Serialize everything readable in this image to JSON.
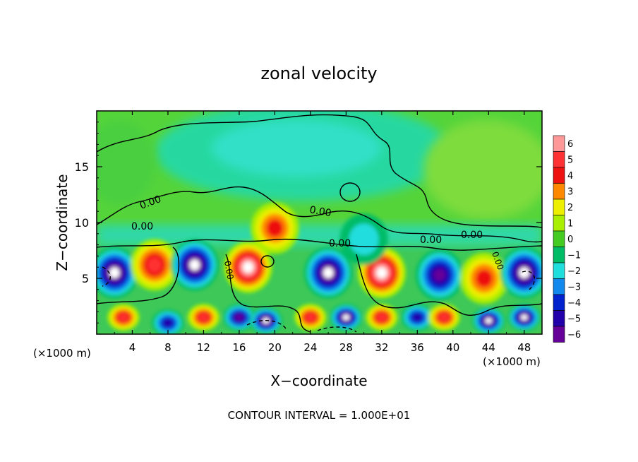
{
  "chart_data": {
    "type": "heatmap",
    "title": "zonal velocity",
    "xlabel": "X−coordinate",
    "ylabel": "Z−coordinate",
    "x_unit_left": "(×1000 m)",
    "x_unit_right": "(×1000 m)",
    "footer": "CONTOUR INTERVAL = 1.000E+01",
    "xlim": [
      0,
      50
    ],
    "ylim": [
      0,
      20
    ],
    "x_ticks": [
      4,
      8,
      12,
      16,
      20,
      24,
      28,
      32,
      36,
      40,
      44,
      48
    ],
    "y_ticks": [
      5,
      10,
      15
    ],
    "colorbar": {
      "levels": [
        6,
        5,
        4,
        3,
        2,
        1,
        0,
        -1,
        -2,
        -3,
        -4,
        -5,
        -6
      ],
      "colors": [
        "#ff9999",
        "#ff3333",
        "#ee1111",
        "#ff8800",
        "#eeee00",
        "#aaee00",
        "#44cc22",
        "#00bb66",
        "#22dddd",
        "#1188ee",
        "#0022cc",
        "#2200aa",
        "#660099"
      ]
    },
    "contour_labels": [
      "0.00",
      "0.00",
      "0.00",
      "0.00",
      "0.00",
      "0.00",
      "0.00",
      "0.00"
    ],
    "cells": [
      {
        "x": 2,
        "z": 5.5,
        "value": -9
      },
      {
        "x": 6.5,
        "z": 6.2,
        "value": 5
      },
      {
        "x": 11,
        "z": 6.2,
        "value": -9
      },
      {
        "x": 17,
        "z": 6,
        "value": 9
      },
      {
        "x": 26,
        "z": 5.5,
        "value": -9
      },
      {
        "x": 32,
        "z": 5.5,
        "value": 8
      },
      {
        "x": 38.5,
        "z": 5.3,
        "value": -7
      },
      {
        "x": 43.5,
        "z": 5,
        "value": 4
      },
      {
        "x": 48,
        "z": 5.5,
        "value": -9
      },
      {
        "x": 3,
        "z": 1.5,
        "value": 5
      },
      {
        "x": 8,
        "z": 1,
        "value": -5
      },
      {
        "x": 12,
        "z": 1.5,
        "value": 5
      },
      {
        "x": 16,
        "z": 1.5,
        "value": -7
      },
      {
        "x": 19,
        "z": 1.2,
        "value": -9
      },
      {
        "x": 24,
        "z": 1.5,
        "value": 5
      },
      {
        "x": 28,
        "z": 1.5,
        "value": -9
      },
      {
        "x": 32,
        "z": 1.5,
        "value": 5
      },
      {
        "x": 36,
        "z": 1.5,
        "value": -5
      },
      {
        "x": 39,
        "z": 1.5,
        "value": 5
      },
      {
        "x": 44,
        "z": 1.2,
        "value": -8
      },
      {
        "x": 48,
        "z": 1.5,
        "value": -9
      },
      {
        "x": 20,
        "z": 9.5,
        "value": 4
      },
      {
        "x": 30,
        "z": 8.5,
        "value": -2
      }
    ]
  }
}
